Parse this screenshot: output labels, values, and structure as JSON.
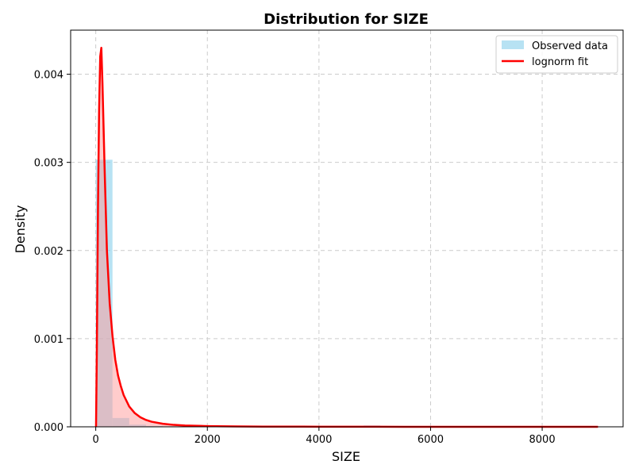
{
  "chart_data": {
    "type": "bar",
    "title": "Distribution for SIZE",
    "xlabel": "SIZE",
    "ylabel": "Density",
    "xlim": [
      -450,
      9450
    ],
    "ylim": [
      0,
      0.0045
    ],
    "xticks": [
      0,
      2000,
      4000,
      6000,
      8000
    ],
    "xtick_labels": [
      "0",
      "2000",
      "4000",
      "6000",
      "8000"
    ],
    "yticks": [
      0,
      0.001,
      0.002,
      0.003,
      0.004
    ],
    "ytick_labels": [
      "0.000",
      "0.001",
      "0.002",
      "0.003",
      "0.004"
    ],
    "grid": true,
    "legend_position": "top-right",
    "colors": {
      "histogram": "#87ceeb",
      "fit_line": "#ff0000",
      "fit_fill": "#ff9999"
    },
    "histogram": {
      "name": "Observed data",
      "bin_edges": [
        0,
        300,
        600,
        900,
        1200,
        1500,
        1800,
        2100,
        2400,
        2700,
        3000,
        3300,
        3600,
        3900,
        4200,
        4500,
        4800,
        5100,
        5400,
        5700,
        6000,
        6300,
        6600,
        6900,
        7200,
        7500,
        7800,
        8100,
        8400,
        8700,
        9000
      ],
      "values": [
        0.00303,
        0.0001,
        2.5e-05,
        1e-05,
        5e-06,
        3e-06,
        2e-06,
        2e-06,
        1.5e-06,
        1.5e-06,
        1e-06,
        1e-06,
        1e-06,
        1e-06,
        1e-06,
        1e-06,
        1.5e-05,
        1e-06,
        1e-06,
        1e-06,
        1e-06,
        1e-06,
        1e-06,
        1e-06,
        1e-06,
        1e-06,
        1e-06,
        1e-06,
        1e-06,
        1e-06
      ]
    },
    "fit": {
      "name": "lognorm fit",
      "x": [
        5,
        20,
        40,
        60,
        80,
        100,
        120,
        160,
        200,
        250,
        300,
        350,
        400,
        450,
        500,
        600,
        700,
        800,
        900,
        1000,
        1200,
        1400,
        1600,
        2000,
        2500,
        3000,
        4000,
        5000,
        6000,
        7000,
        8000,
        9000
      ],
      "y": [
        0.0,
        0.0009,
        0.0025,
        0.0036,
        0.0042,
        0.0043,
        0.0039,
        0.0029,
        0.002,
        0.0014,
        0.00103,
        0.00076,
        0.00058,
        0.00046,
        0.00036,
        0.00023,
        0.000155,
        0.000108,
        7.8e-05,
        5.8e-05,
        3.5e-05,
        2.2e-05,
        1.5e-05,
        8e-06,
        4.5e-06,
        2.8e-06,
        1.3e-06,
        7e-07,
        4e-07,
        3e-07,
        2e-07,
        1e-07
      ]
    }
  }
}
